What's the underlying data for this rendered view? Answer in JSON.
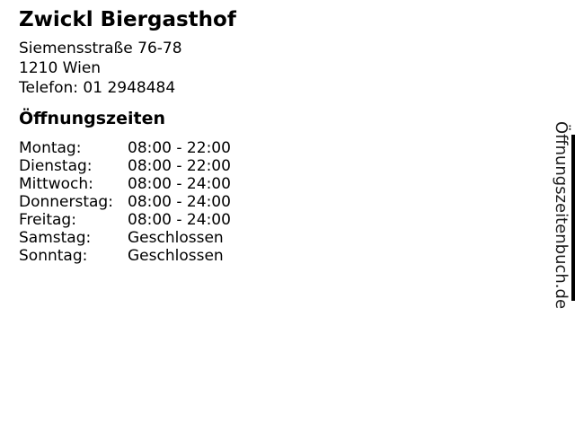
{
  "business": {
    "name": "Zwickl Biergasthof",
    "street": "Siemensstraße 76-78",
    "city": "1210 Wien",
    "phone": "Telefon: 01 2948484"
  },
  "hours": {
    "heading": "Öffnungszeiten",
    "rows": [
      {
        "day": "Montag:",
        "time": "08:00 - 22:00"
      },
      {
        "day": "Dienstag:",
        "time": "08:00 - 22:00"
      },
      {
        "day": "Mittwoch:",
        "time": "08:00 - 24:00"
      },
      {
        "day": "Donnerstag:",
        "time": "08:00 - 24:00"
      },
      {
        "day": "Freitag:",
        "time": "08:00 - 24:00"
      },
      {
        "day": "Samstag:",
        "time": "Geschlossen"
      },
      {
        "day": "Sonntag:",
        "time": "Geschlossen"
      }
    ]
  },
  "watermark": {
    "text": "Öffnungszeitenbuch.de"
  },
  "colors": {
    "background": "#ffffff",
    "text": "#000000",
    "watermark_text": "#1a1a1a",
    "edge_bar": "#000000"
  }
}
